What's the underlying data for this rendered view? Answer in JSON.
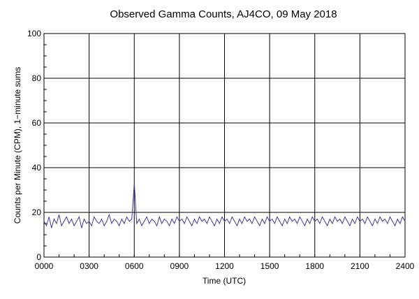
{
  "chart_data": {
    "type": "line",
    "title": "Observed Gamma Counts, AJ4CO, 09 May 2018",
    "xlabel": "Time (UTC)",
    "ylabel": "Counts per Minute (CPM), 1−minute sums",
    "xlim": [
      0,
      1440
    ],
    "ylim": [
      0,
      100
    ],
    "x_tick_minutes": [
      0,
      180,
      360,
      540,
      720,
      900,
      1080,
      1260,
      1440
    ],
    "x_tick_labels": [
      "0000",
      "0300",
      "0600",
      "0900",
      "1200",
      "1500",
      "1800",
      "2100",
      "2400"
    ],
    "y_ticks": [
      0,
      20,
      40,
      60,
      80,
      100
    ],
    "y_tick_labels": [
      "0",
      "20",
      "40",
      "60",
      "80",
      "100"
    ],
    "grid": true,
    "series_color": "#3b3b9a",
    "series": [
      {
        "x_start_minute": 0,
        "x_step_minutes": 10,
        "values": [
          16,
          14,
          18,
          13,
          17,
          15,
          19,
          14,
          16,
          18,
          15,
          17,
          14,
          16,
          18,
          13,
          17,
          15,
          16,
          14,
          18,
          16,
          15,
          17,
          14,
          16,
          19,
          15,
          17,
          16,
          14,
          17,
          15,
          18,
          16,
          17,
          33,
          15,
          17,
          14,
          16,
          18,
          15,
          17,
          16,
          14,
          18,
          15,
          17,
          16,
          14,
          17,
          15,
          18,
          16,
          17,
          15,
          18,
          16,
          14,
          17,
          15,
          18,
          16,
          17,
          15,
          18,
          16,
          14,
          17,
          15,
          18,
          16,
          17,
          15,
          18,
          16,
          14,
          17,
          15,
          18,
          16,
          17,
          15,
          18,
          16,
          14,
          17,
          15,
          18,
          16,
          17,
          15,
          18,
          16,
          14,
          17,
          15,
          18,
          16,
          17,
          15,
          18,
          16,
          14,
          17,
          15,
          18,
          16,
          17,
          15,
          18,
          16,
          14,
          17,
          15,
          18,
          16,
          17,
          15,
          18,
          16,
          14,
          17,
          15,
          18,
          16,
          17,
          15,
          18,
          16,
          14,
          17,
          15,
          18,
          16,
          17,
          15,
          18,
          16,
          14,
          17,
          15,
          18,
          16
        ]
      }
    ]
  }
}
